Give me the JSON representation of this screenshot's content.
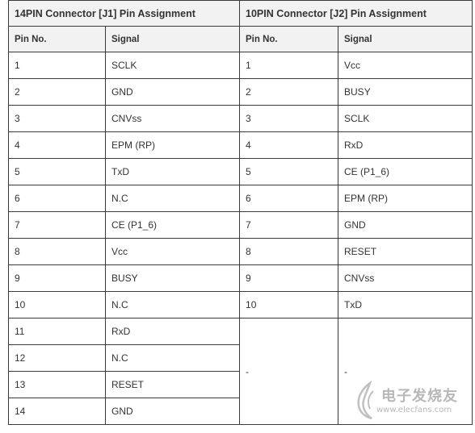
{
  "table": {
    "j1_header": "14PIN Connector [J1] Pin Assignment",
    "j2_header": "10PIN Connector [J2] Pin Assignment",
    "col_pin": "Pin No.",
    "col_signal": "Signal",
    "rows": [
      {
        "j1_pin": "1",
        "j1_signal": "SCLK",
        "j2_pin": "1",
        "j2_signal": "Vcc"
      },
      {
        "j1_pin": "2",
        "j1_signal": "GND",
        "j2_pin": "2",
        "j2_signal": "BUSY"
      },
      {
        "j1_pin": "3",
        "j1_signal": "CNVss",
        "j2_pin": "3",
        "j2_signal": "SCLK"
      },
      {
        "j1_pin": "4",
        "j1_signal": "EPM (RP)",
        "j2_pin": "4",
        "j2_signal": "RxD"
      },
      {
        "j1_pin": "5",
        "j1_signal": "TxD",
        "j2_pin": "5",
        "j2_signal": "CE (P1_6)"
      },
      {
        "j1_pin": "6",
        "j1_signal": "N.C",
        "j2_pin": "6",
        "j2_signal": "EPM (RP)"
      },
      {
        "j1_pin": "7",
        "j1_signal": "CE (P1_6)",
        "j2_pin": "7",
        "j2_signal": "GND"
      },
      {
        "j1_pin": "8",
        "j1_signal": "Vcc",
        "j2_pin": "8",
        "j2_signal": "RESET"
      },
      {
        "j1_pin": "9",
        "j1_signal": "BUSY",
        "j2_pin": "9",
        "j2_signal": "CNVss"
      },
      {
        "j1_pin": "10",
        "j1_signal": "N.C",
        "j2_pin": "10",
        "j2_signal": "TxD"
      },
      {
        "j1_pin": "11",
        "j1_signal": "RxD"
      },
      {
        "j1_pin": "12",
        "j1_signal": "N.C"
      },
      {
        "j1_pin": "13",
        "j1_signal": "RESET"
      },
      {
        "j1_pin": "14",
        "j1_signal": "GND"
      }
    ],
    "j2_empty_pin": "-",
    "j2_empty_signal": "-"
  },
  "watermark": {
    "text": "电子发烧友",
    "url": "www.elecfans.com"
  },
  "colors": {
    "border": "#3a3a3a",
    "header_bg": "#f2f2f2",
    "text": "#333333",
    "watermark": "#b8b8b8"
  }
}
